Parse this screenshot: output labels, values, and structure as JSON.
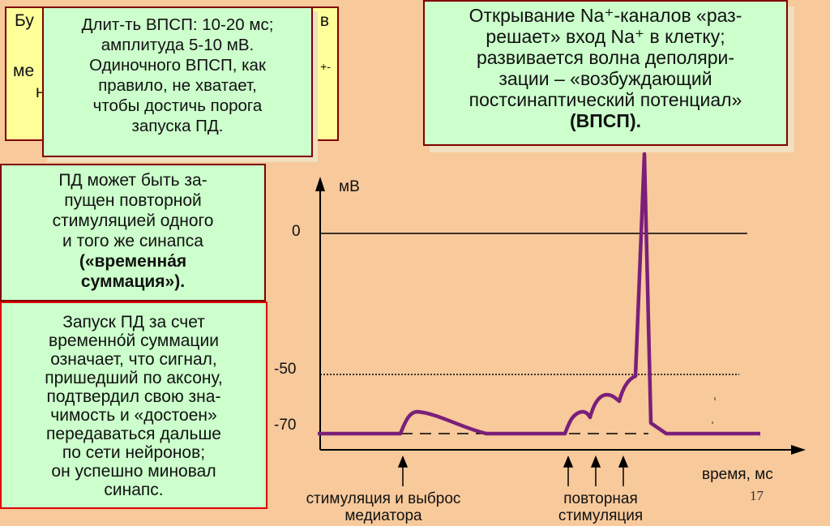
{
  "background_box": {
    "line1_left": "Бу",
    "line1_right": "в",
    "line2_left": "ме",
    "line2_right": "+-",
    "line3_left": "н"
  },
  "epsp_duration_box": {
    "lines": [
      "Длит-ть ВПСП: 10-20 мс;",
      "амплитуда 5-10 мВ.",
      "Одиночного ВПСП, как",
      "правило, не хватает,",
      "чтобы достичь порога",
      "запуска ПД."
    ]
  },
  "na_box": {
    "lines": [
      "Открывание Na⁺-каналов «раз-",
      "решает» вход Na⁺ в клетку;",
      "развивается волна деполяри-",
      "зации – «возбуждающий",
      "постсинаптический потенциал»"
    ],
    "bold_line": "(ВПСП)."
  },
  "temporal_box": {
    "lines": [
      "ПД может быть за-",
      "пущен повторной",
      "стимуляцией одного",
      "и того же синапса"
    ],
    "bold_lines": [
      "(«временна́я",
      "суммация»)."
    ]
  },
  "conclusion_box": {
    "lines": [
      "Запуск ПД за счет",
      "временно́й суммации",
      "означает, что сигнал,",
      "пришедший по аксону,",
      "подтвердил свою зна-",
      "чимость и «достоен»",
      "передаваться дальше",
      "по сети нейронов;",
      "он успешно миновал",
      "синапс."
    ]
  },
  "chart": {
    "y_axis_label": "мВ",
    "x_axis_label": "время, мс",
    "tick_labels": [
      "0",
      "-50",
      "-70"
    ],
    "stim1_label": [
      "стимуляция и выброс",
      "медиатора"
    ],
    "stim2_label": [
      "повторная",
      "стимуляция"
    ]
  },
  "slide_number": "17",
  "colors": {
    "background": "#f7c99b",
    "green_box": "#ccffcc",
    "yellow_box": "#ffff99",
    "trace": "#7a1f7a",
    "border": "#800000"
  }
}
